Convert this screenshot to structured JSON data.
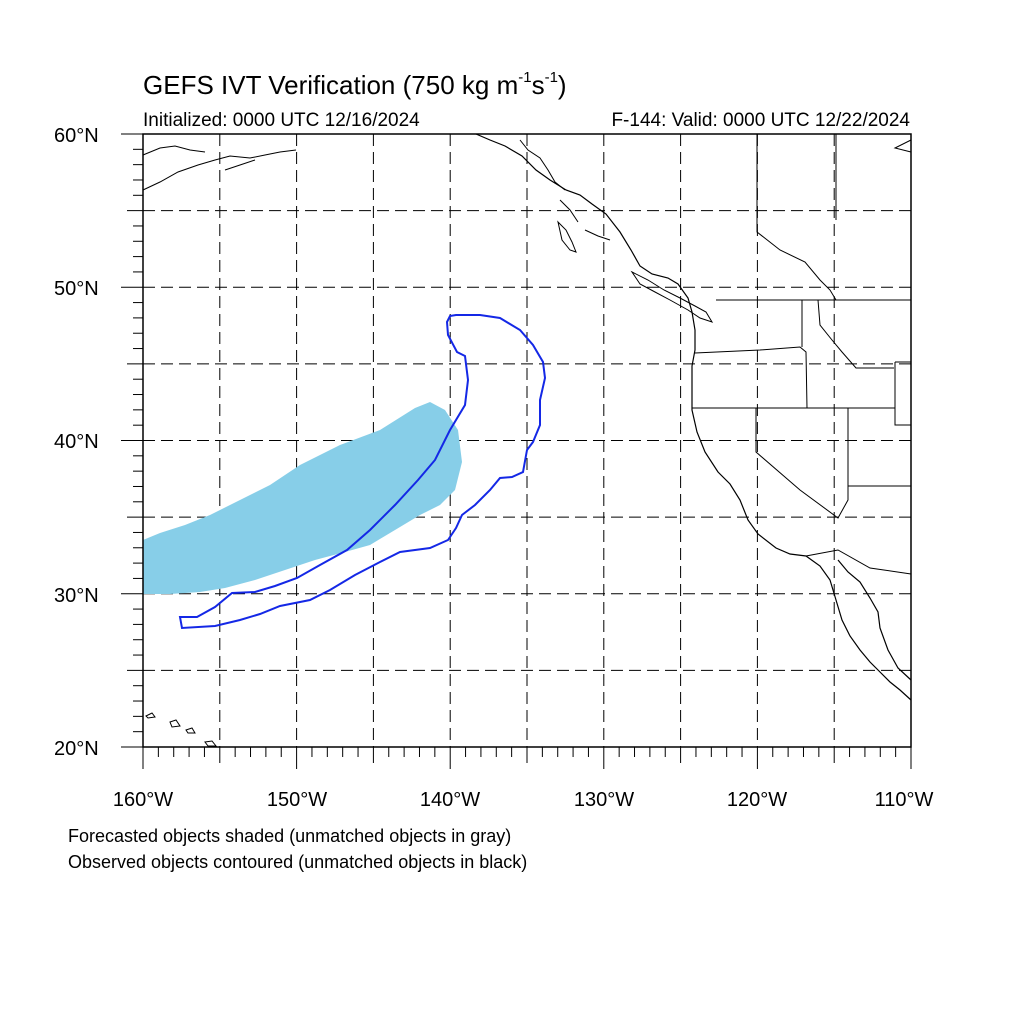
{
  "title": {
    "main": "GEFS IVT Verification (750 kg m",
    "exp1": "-1",
    "mid": "s",
    "exp2": "-1",
    "close": ")"
  },
  "subtitle": {
    "initialized": "Initialized: 0000 UTC 12/16/2024",
    "valid": "F-144: Valid: 0000 UTC 12/22/2024"
  },
  "map": {
    "lon_range": [
      -160,
      -110
    ],
    "lat_range": [
      20,
      60
    ],
    "grid": "dashed every 5 degrees",
    "lat_labels": [
      "20°N",
      "30°N",
      "40°N",
      "50°N",
      "60°N"
    ],
    "lon_labels": [
      "160°W",
      "150°W",
      "140°W",
      "130°W",
      "120°W",
      "110°W"
    ],
    "forecast_fill_color": "#87CEE8",
    "observed_contour_color": "#1428E6"
  },
  "captions": {
    "line1": "Forecasted objects shaded (unmatched objects in gray)",
    "line2": "Observed objects contoured (unmatched objects in black)"
  }
}
